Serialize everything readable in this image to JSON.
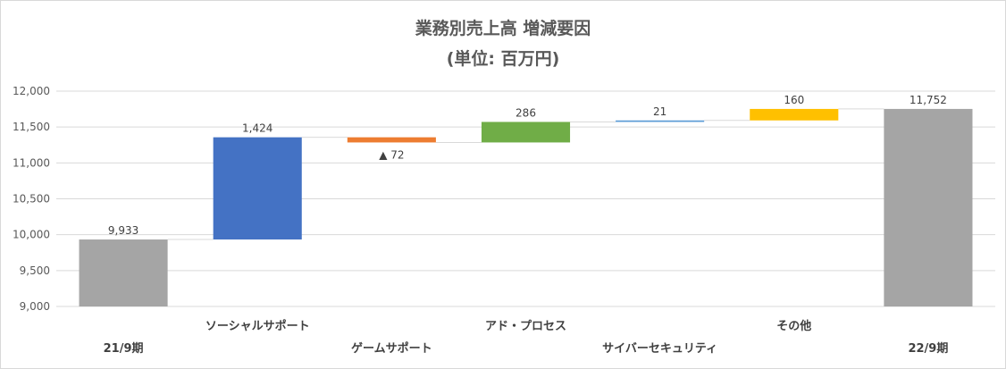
{
  "chart_data": {
    "type": "bar",
    "subtype": "waterfall",
    "title": "業務別売上高 増減要因",
    "subtitle": "(単位: 百万円)",
    "xlabel": "",
    "ylabel": "",
    "ylim": [
      9000,
      12000
    ],
    "ytick_labels": [
      "9,000",
      "9,500",
      "10,000",
      "10,500",
      "11,000",
      "11,500",
      "12,000"
    ],
    "grid": true,
    "categories": [
      "21/9期",
      "ソーシャルサポート",
      "ゲームサポート",
      "アド・プロセス",
      "サイバーセキュリティ",
      "その他",
      "22/9期"
    ],
    "values": [
      9933,
      1424,
      -72,
      286,
      21,
      160,
      11752
    ],
    "data_labels": [
      "9,933",
      "1,424",
      "▲ 72",
      "286",
      "21",
      "160",
      "11,752"
    ],
    "bar_kinds": [
      "total",
      "delta",
      "delta",
      "delta",
      "delta",
      "delta",
      "total"
    ],
    "colors": [
      "#a5a5a5",
      "#4472c4",
      "#ed7d31",
      "#70ad47",
      "#5b9bd5",
      "#ffc000",
      "#a5a5a5"
    ],
    "connector_color": "#d9d9d9"
  }
}
